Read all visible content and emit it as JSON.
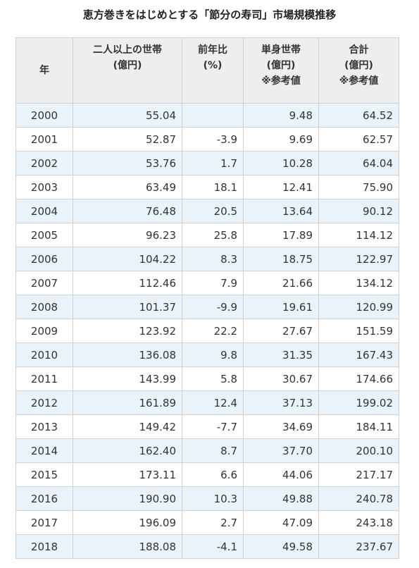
{
  "title": "恵方巻きをはじめとする「節分の寿司」市場規模推移",
  "table": {
    "header": [
      [
        "年"
      ],
      [
        "二人以上の世帯",
        "(億円)"
      ],
      [
        "前年比",
        "(%)"
      ],
      [
        "単身世帯",
        "(億円)",
        "※参考値"
      ],
      [
        "合計",
        "(億円)",
        "※参考値"
      ]
    ],
    "rows": [
      [
        "2000",
        "55.04",
        null,
        "9.48",
        "64.52"
      ],
      [
        "2001",
        "52.87",
        "-3.9",
        "9.69",
        "62.57"
      ],
      [
        "2002",
        "53.76",
        "1.7",
        "10.28",
        "64.04"
      ],
      [
        "2003",
        "63.49",
        "18.1",
        "12.41",
        "75.90"
      ],
      [
        "2004",
        "76.48",
        "20.5",
        "13.64",
        "90.12"
      ],
      [
        "2005",
        "96.23",
        "25.8",
        "17.89",
        "114.12"
      ],
      [
        "2006",
        "104.22",
        "8.3",
        "18.75",
        "122.97"
      ],
      [
        "2007",
        "112.46",
        "7.9",
        "21.66",
        "134.12"
      ],
      [
        "2008",
        "101.37",
        "-9.9",
        "19.61",
        "120.99"
      ],
      [
        "2009",
        "123.92",
        "22.2",
        "27.67",
        "151.59"
      ],
      [
        "2010",
        "136.08",
        "9.8",
        "31.35",
        "167.43"
      ],
      [
        "2011",
        "143.99",
        "5.8",
        "30.67",
        "174.66"
      ],
      [
        "2012",
        "161.89",
        "12.4",
        "37.13",
        "199.02"
      ],
      [
        "2013",
        "149.42",
        "-7.7",
        "34.69",
        "184.11"
      ],
      [
        "2014",
        "162.40",
        "8.7",
        "37.70",
        "200.10"
      ],
      [
        "2015",
        "173.11",
        "6.6",
        "44.06",
        "217.17"
      ],
      [
        "2016",
        "190.90",
        "10.3",
        "49.88",
        "240.78"
      ],
      [
        "2017",
        "196.09",
        "2.7",
        "47.09",
        "243.18"
      ],
      [
        "2018",
        "188.08",
        "-4.1",
        "49.58",
        "237.67"
      ]
    ]
  }
}
